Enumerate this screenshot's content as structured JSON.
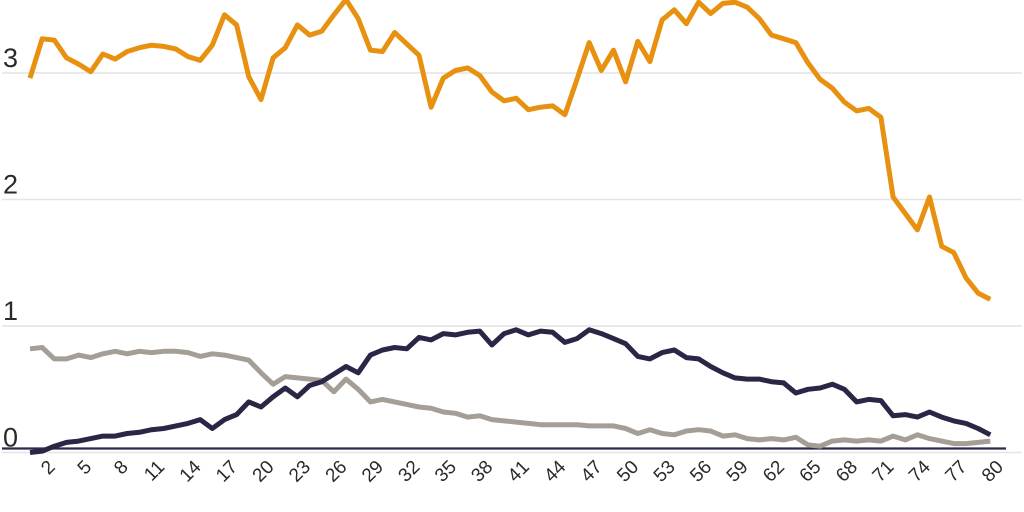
{
  "figure": {
    "background_color": "#ffffff",
    "note": "chart cropped at top; orange series clips against upper edge"
  },
  "chart_data": {
    "type": "line",
    "title": "",
    "xlabel": "",
    "ylabel": "",
    "x_start": 1,
    "x_step": 1,
    "n_points": 80,
    "x_axis_ticks": [
      2,
      5,
      8,
      11,
      14,
      17,
      20,
      23,
      26,
      29,
      32,
      35,
      38,
      41,
      44,
      47,
      50,
      53,
      56,
      59,
      62,
      65,
      68,
      71,
      74,
      77,
      80
    ],
    "x_tick_labels": [
      "2",
      "5",
      "8",
      "11",
      "14",
      "17",
      "20",
      "23",
      "26",
      "29",
      "32",
      "35",
      "38",
      "41",
      "44",
      "47",
      "50",
      "53",
      "56",
      "59",
      "62",
      "65",
      "68",
      "71",
      "74",
      "77",
      "80"
    ],
    "x_tick_rotation_deg": -45,
    "y_ticks": [
      0,
      1,
      2,
      3
    ],
    "y_tick_labels": [
      "0",
      "1",
      "2",
      "3"
    ],
    "y_visible_range": [
      0,
      3.57
    ],
    "grid": "horizontal",
    "legend_position": "none-visible",
    "series": [
      {
        "name": "gray",
        "color": "#a49e96",
        "values": [
          0.82,
          0.83,
          0.74,
          0.74,
          0.77,
          0.75,
          0.78,
          0.8,
          0.78,
          0.8,
          0.79,
          0.8,
          0.8,
          0.79,
          0.76,
          0.78,
          0.77,
          0.75,
          0.73,
          0.63,
          0.54,
          0.6,
          0.59,
          0.58,
          0.57,
          0.48,
          0.58,
          0.5,
          0.4,
          0.42,
          0.4,
          0.38,
          0.36,
          0.35,
          0.32,
          0.31,
          0.28,
          0.29,
          0.26,
          0.25,
          0.24,
          0.23,
          0.22,
          0.22,
          0.22,
          0.22,
          0.21,
          0.21,
          0.21,
          0.19,
          0.15,
          0.18,
          0.15,
          0.14,
          0.17,
          0.18,
          0.17,
          0.13,
          0.14,
          0.11,
          0.1,
          0.11,
          0.1,
          0.12,
          0.06,
          0.05,
          0.09,
          0.1,
          0.09,
          0.1,
          0.09,
          0.13,
          0.1,
          0.14,
          0.11,
          0.09,
          0.07,
          0.07,
          0.08,
          0.09
        ]
      },
      {
        "name": "navy",
        "color": "#2b2546",
        "values": [
          0.0,
          0.01,
          0.05,
          0.08,
          0.09,
          0.11,
          0.13,
          0.13,
          0.15,
          0.16,
          0.18,
          0.19,
          0.21,
          0.23,
          0.26,
          0.19,
          0.26,
          0.3,
          0.4,
          0.36,
          0.44,
          0.51,
          0.44,
          0.53,
          0.56,
          0.62,
          0.68,
          0.63,
          0.77,
          0.81,
          0.83,
          0.82,
          0.91,
          0.89,
          0.94,
          0.93,
          0.95,
          0.96,
          0.85,
          0.94,
          0.97,
          0.93,
          0.96,
          0.95,
          0.87,
          0.9,
          0.97,
          0.94,
          0.9,
          0.86,
          0.76,
          0.74,
          0.79,
          0.81,
          0.75,
          0.74,
          0.68,
          0.63,
          0.59,
          0.58,
          0.58,
          0.56,
          0.55,
          0.47,
          0.5,
          0.51,
          0.54,
          0.5,
          0.4,
          0.42,
          0.41,
          0.29,
          0.3,
          0.28,
          0.32,
          0.28,
          0.25,
          0.23,
          0.19,
          0.14
        ]
      },
      {
        "name": "orange",
        "color": "#e89110",
        "values": [
          2.96,
          3.27,
          3.26,
          3.12,
          3.07,
          3.01,
          3.15,
          3.11,
          3.17,
          3.2,
          3.22,
          3.21,
          3.19,
          3.13,
          3.1,
          3.22,
          3.46,
          3.38,
          2.97,
          2.79,
          3.12,
          3.2,
          3.38,
          3.3,
          3.33,
          3.46,
          3.58,
          3.43,
          3.18,
          3.17,
          3.32,
          3.23,
          3.14,
          2.73,
          2.96,
          3.02,
          3.04,
          2.98,
          2.85,
          2.78,
          2.8,
          2.71,
          2.73,
          2.74,
          2.67,
          2.95,
          3.24,
          3.02,
          3.18,
          2.93,
          3.25,
          3.09,
          3.42,
          3.5,
          3.39,
          3.56,
          3.47,
          3.55,
          3.56,
          3.52,
          3.43,
          3.3,
          3.27,
          3.24,
          3.08,
          2.95,
          2.88,
          2.77,
          2.7,
          2.72,
          2.65,
          2.02,
          1.89,
          1.76,
          2.02,
          1.63,
          1.58,
          1.38,
          1.26,
          1.21
        ]
      }
    ]
  },
  "style": {
    "gridline_color": "#e4e4e4",
    "axis_baseline_color": "#2e2a4e",
    "tick_text_color": "#2a2a2a",
    "line_width": 5
  }
}
